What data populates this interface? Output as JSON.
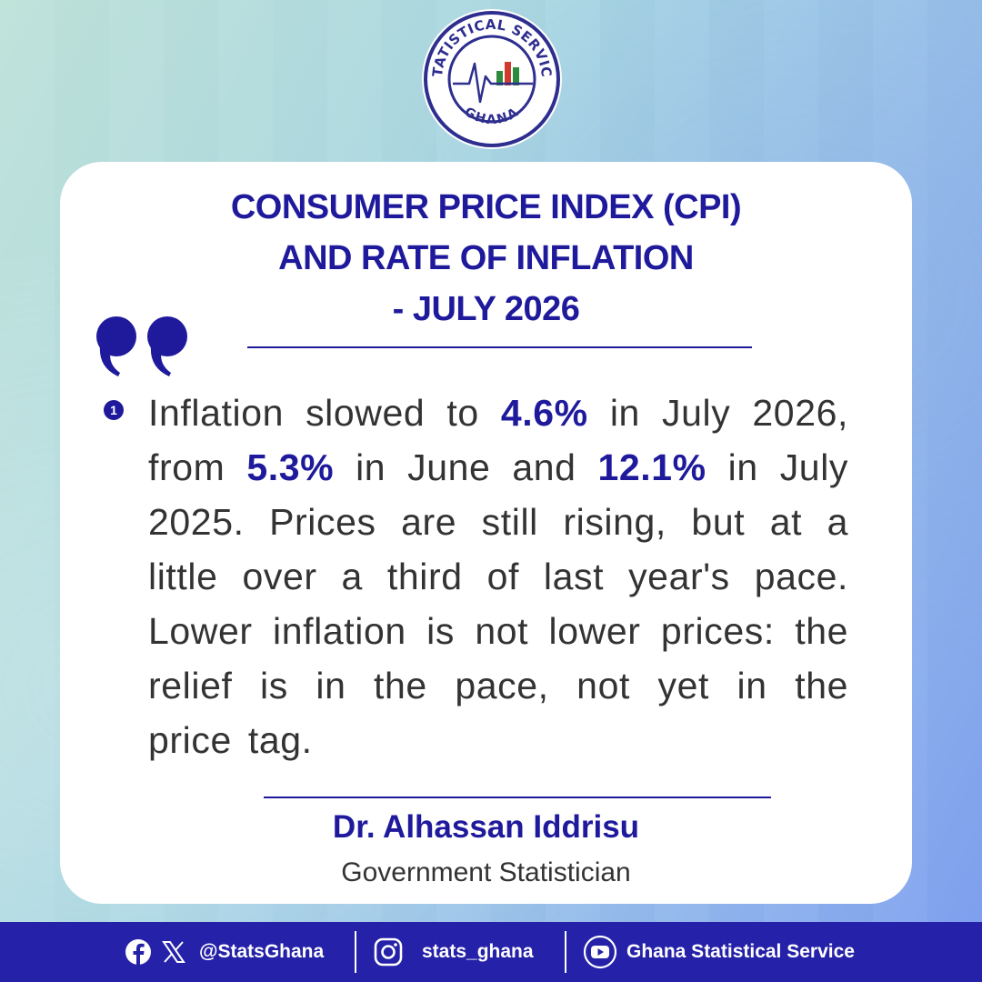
{
  "logo": {
    "top_text": "STATISTICAL SERVICE",
    "bottom_text": "GHANA",
    "colors": {
      "navy": "#2e2e8f",
      "green": "#2e8b3e",
      "red": "#d23a2e"
    }
  },
  "card": {
    "title_lines": [
      "CONSUMER PRICE INDEX (CPI)",
      "AND RATE OF INFLATION",
      "- JULY 2026"
    ],
    "item_number": "1",
    "body": [
      {
        "text": "Inflation slowed to ",
        "highlight": false
      },
      {
        "text": "4.6%",
        "highlight": true
      },
      {
        "text": " in July 2026, from ",
        "highlight": false
      },
      {
        "text": "5.3%",
        "highlight": true
      },
      {
        "text": " in June and ",
        "highlight": false
      },
      {
        "text": "12.1%",
        "highlight": true
      },
      {
        "text": " in July 2025. Prices are still rising, but at a little over a third of last year's pace. Lower inflation is not lower prices: the relief is in the pace, not yet in the price tag.",
        "highlight": false
      }
    ],
    "signature": {
      "name": "Dr. Alhassan Iddrisu",
      "role": "Government Statistician"
    }
  },
  "footer": {
    "handle_fb_x": "@StatsGhana",
    "handle_instagram": "stats_ghana",
    "handle_youtube": "Ghana Statistical Service",
    "icons": [
      "facebook-icon",
      "x-icon",
      "instagram-icon",
      "youtube-icon"
    ]
  },
  "colors": {
    "accent": "#1f1a9c",
    "footer_bg": "#2521a8",
    "body_text": "#333333"
  }
}
